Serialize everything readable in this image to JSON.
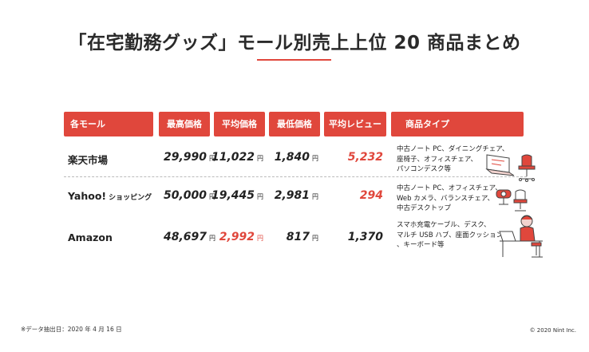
{
  "title": "「在宅勤務グッズ」モール別売上上位 20 商品まとめ",
  "headers": {
    "store": "各モール",
    "max_price": "最高価格",
    "avg_price": "平均価格",
    "min_price": "最低価格",
    "avg_reviews": "平均レビュー",
    "product_types": "商品タイプ"
  },
  "unit": "円",
  "rows": [
    {
      "store": "楽天市場",
      "store_sub": "",
      "max_price": "29,990",
      "avg_price": "11,022",
      "min_price": "1,840",
      "avg_reviews": "5,232",
      "types": [
        "中古ノート PC、ダイニングチェア、",
        "座椅子、オフィスチェア、",
        "パソコンデスク等"
      ]
    },
    {
      "store": "Yahoo!",
      "store_sub": "ショッピング",
      "max_price": "50,000",
      "avg_price": "19,445",
      "min_price": "2,981",
      "avg_reviews": "294",
      "types": [
        "中古ノート PC、オフィスチェア、",
        "Web カメラ、バランスチェア、",
        "中古デスクトップ"
      ]
    },
    {
      "store": "Amazon",
      "store_sub": "",
      "max_price": "48,697",
      "avg_price": "2,992",
      "min_price": "817",
      "avg_reviews": "1,370",
      "types": [
        "スマホ充電ケーブル、デスク、",
        "マルチ USB ハブ、座面クッション",
        "、キーボード等"
      ]
    }
  ],
  "footnote": "※データ抽出日：2020 年 4 月 16 日",
  "copyright": "© 2020 Nint Inc.",
  "colors": {
    "accent": "#e0473c",
    "text": "#222222"
  },
  "icons": [
    "laptop-chair-illustration",
    "webcam-chair-illustration",
    "person-working-illustration"
  ]
}
